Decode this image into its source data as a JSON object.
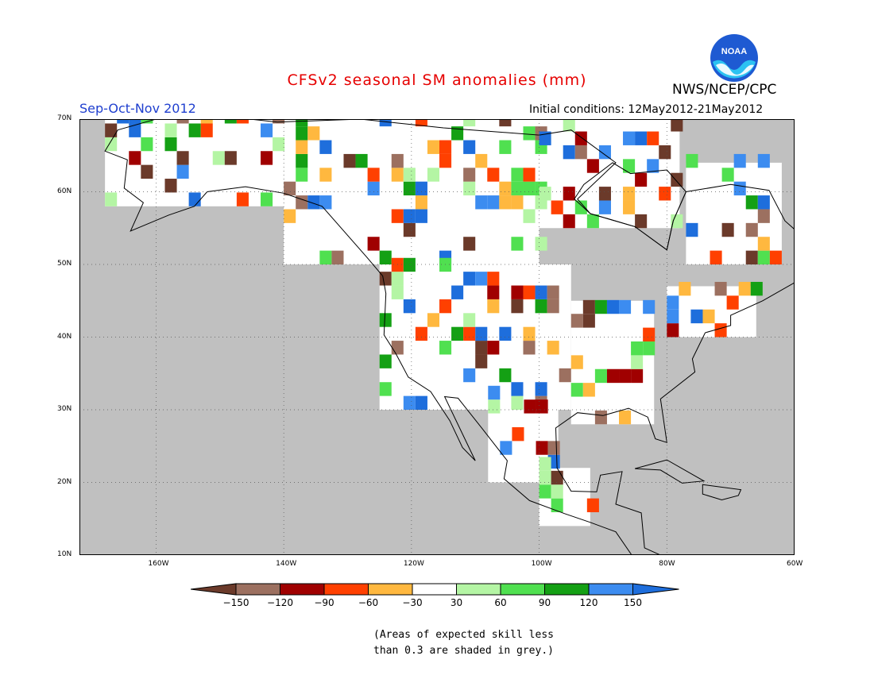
{
  "header": {
    "title": "CFSv2 seasonal SM anomalies (mm)",
    "season": "Sep-Oct-Nov 2012",
    "initial_conditions": "Initial conditions: 12May2012-21May2012",
    "agency": "NWS/NCEP/CPC",
    "logo_text": "NOAA"
  },
  "map": {
    "lon_range": [
      -172,
      -60
    ],
    "lat_range": [
      10,
      70
    ],
    "lat_labels": [
      "10N",
      "20N",
      "30N",
      "40N",
      "50N",
      "60N",
      "70N"
    ],
    "lon_labels": [
      "160W",
      "140W",
      "120W",
      "100W",
      "80W",
      "60W"
    ],
    "colors": {
      "ocean": "#ffffff",
      "low_skill": "#c0c0c0",
      "land": "#ffffff",
      "coast": "#000000",
      "grid": "#666666"
    }
  },
  "legend": {
    "bins": [
      {
        "color": "#6b3a2a"
      },
      {
        "color": "#9c7060"
      },
      {
        "color": "#a00000"
      },
      {
        "color": "#ff4000"
      },
      {
        "color": "#ffb83f"
      },
      {
        "color": "#ffffff"
      },
      {
        "color": "#b4f5a4"
      },
      {
        "color": "#50e050"
      },
      {
        "color": "#14a014"
      },
      {
        "color": "#3c8cf0"
      },
      {
        "color": "#1e6edc"
      }
    ],
    "ticks": [
      "−150",
      "−120",
      "−90",
      "−60",
      "−30",
      "30",
      "60",
      "90",
      "120",
      "150"
    ]
  },
  "note": {
    "line1": "(Areas of expected skill less",
    "line2": "than 0.3 are shaded in grey.)"
  }
}
